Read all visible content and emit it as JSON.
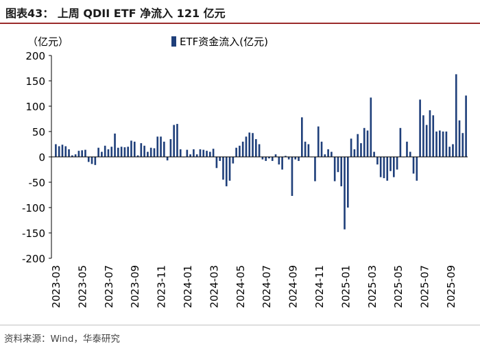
{
  "header": {
    "title": "图表43：  上周 QDII ETF 净流入 121 亿元"
  },
  "footer": {
    "source": "资料来源：Wind，华泰研究"
  },
  "chart_data": {
    "type": "bar",
    "title": "上周 QDII ETF 净流入 121 亿元",
    "ylabel": "（亿元）",
    "xlabel": "",
    "legend": "ETF资金流入(亿元)",
    "legend_position": "top-center",
    "ylim": [
      -200,
      200
    ],
    "yticks": [
      "200",
      "150",
      "100",
      "50",
      "0",
      "-50",
      "-100",
      "-150",
      "-200"
    ],
    "x_tick_labels": [
      "2023-03",
      "2023-05",
      "2023-07",
      "2023-09",
      "2023-11",
      "2024-01",
      "2024-03",
      "2024-05",
      "2024-07",
      "2024-09",
      "2024-11",
      "2025-01",
      "2025-03",
      "2025-05",
      "2025-07",
      "2025-09"
    ],
    "series_color": "#1f3f7a",
    "series": [
      {
        "name": "ETF资金流入(亿元)",
        "values": [
          25,
          21,
          24,
          21,
          15,
          3,
          5,
          12,
          13,
          14,
          -10,
          -14,
          -16,
          18,
          10,
          22,
          15,
          20,
          46,
          18,
          20,
          19,
          20,
          32,
          30,
          3,
          27,
          22,
          10,
          18,
          17,
          40,
          40,
          30,
          -7,
          35,
          63,
          65,
          15,
          0,
          14,
          5,
          15,
          5,
          15,
          14,
          12,
          10,
          16,
          -22,
          -8,
          -45,
          -58,
          -47,
          -13,
          18,
          22,
          30,
          40,
          48,
          47,
          35,
          25,
          -5,
          -8,
          -3,
          -8,
          5,
          -15,
          -25,
          2,
          -5,
          -77,
          -5,
          -8,
          78,
          30,
          25,
          0,
          -48,
          60,
          30,
          5,
          15,
          10,
          -48,
          -30,
          -58,
          -143,
          -100,
          36,
          15,
          45,
          27,
          57,
          52,
          117,
          10,
          -15,
          -40,
          -42,
          -47,
          -28,
          -40,
          -25,
          57,
          0,
          30,
          10,
          -33,
          -47,
          113,
          82,
          63,
          92,
          82,
          50,
          52,
          50,
          50,
          20,
          25,
          163,
          72,
          47,
          121
        ]
      }
    ]
  }
}
